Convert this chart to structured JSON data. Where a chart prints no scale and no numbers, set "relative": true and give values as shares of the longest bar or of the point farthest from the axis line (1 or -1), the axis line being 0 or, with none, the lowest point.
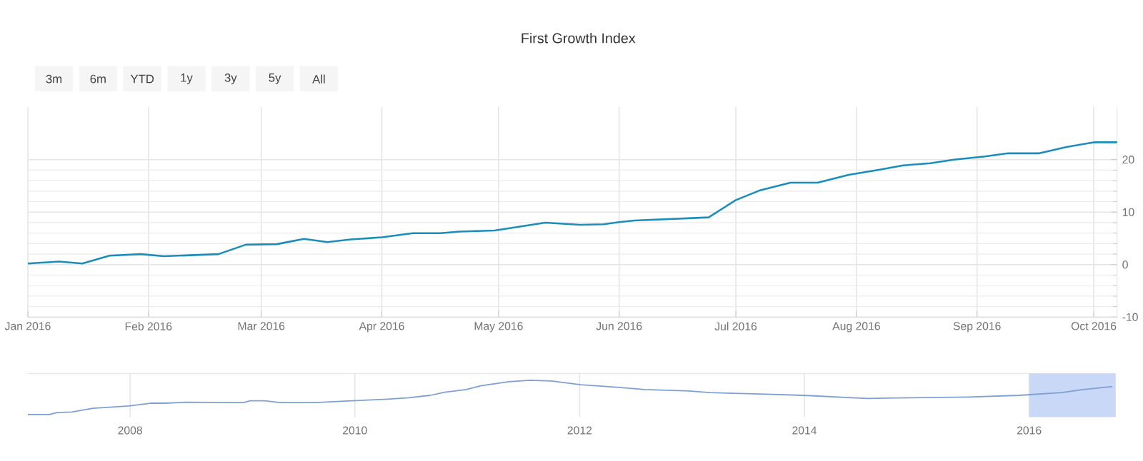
{
  "chart_data": [
    {
      "type": "line",
      "title": "First Growth Index",
      "annotations": [
        "3m",
        "6m",
        "YTD",
        "1y",
        "3y",
        "5y",
        "All"
      ],
      "x": [
        "2016-01-01",
        "2016-01-09",
        "2016-01-15",
        "2016-01-22",
        "2016-01-30",
        "2016-02-05",
        "2016-02-19",
        "2016-02-26",
        "2016-03-05",
        "2016-03-12",
        "2016-03-18",
        "2016-03-24",
        "2016-04-01",
        "2016-04-09",
        "2016-04-16",
        "2016-04-21",
        "2016-04-30",
        "2016-05-13",
        "2016-05-22",
        "2016-05-28",
        "2016-06-01",
        "2016-06-05",
        "2016-06-24",
        "2016-07-01",
        "2016-07-07",
        "2016-07-15",
        "2016-07-22",
        "2016-07-30",
        "2016-08-07",
        "2016-08-13",
        "2016-08-20",
        "2016-08-26",
        "2016-09-03",
        "2016-09-09",
        "2016-09-17",
        "2016-09-24",
        "2016-10-01",
        "2016-10-07"
      ],
      "series": [
        {
          "color": "#1a8dbb",
          "values": [
            0.2,
            0.6,
            0.2,
            1.7,
            2.0,
            1.6,
            2.0,
            3.8,
            3.9,
            4.9,
            4.3,
            4.8,
            5.2,
            6.0,
            6.0,
            6.3,
            6.5,
            8.0,
            7.6,
            7.7,
            8.1,
            8.4,
            9.0,
            12.3,
            14.1,
            15.6,
            15.6,
            17.1,
            18.1,
            18.9,
            19.3,
            20.0,
            20.6,
            21.2,
            21.2,
            22.4,
            23.3,
            23.3
          ]
        }
      ],
      "xlim": [
        "2016-01-01",
        "2016-10-07"
      ],
      "xticks": [
        {
          "value": "2016-01-01",
          "label": "Jan 2016"
        },
        {
          "value": "2016-02-01",
          "label": "Feb 2016"
        },
        {
          "value": "2016-03-01",
          "label": "Mar 2016"
        },
        {
          "value": "2016-04-01",
          "label": "Apr 2016"
        },
        {
          "value": "2016-05-01",
          "label": "May 2016"
        },
        {
          "value": "2016-06-01",
          "label": "Jun 2016"
        },
        {
          "value": "2016-07-01",
          "label": "Jul 2016"
        },
        {
          "value": "2016-08-01",
          "label": "Aug 2016"
        },
        {
          "value": "2016-09-01",
          "label": "Sep 2016"
        },
        {
          "value": "2016-10-01",
          "label": "Oct 2016"
        }
      ],
      "ylim": [
        -10,
        30
      ],
      "yticks": [
        -10,
        0,
        10,
        20
      ],
      "grid": true
    },
    {
      "type": "line",
      "relative": true,
      "x": [
        2007.09,
        2007.28,
        2007.35,
        2007.48,
        2007.67,
        2007.99,
        2008.18,
        2008.31,
        2008.5,
        2008.88,
        2009.01,
        2009.07,
        2009.2,
        2009.33,
        2009.65,
        2009.97,
        2010.29,
        2010.48,
        2010.67,
        2010.8,
        2010.99,
        2011.12,
        2011.37,
        2011.56,
        2011.75,
        2012.01,
        2012.33,
        2012.58,
        2012.97,
        2013.16,
        2013.61,
        2013.99,
        2014.56,
        2014.95,
        2015.46,
        2015.91,
        2016.29,
        2016.48,
        2016.74
      ],
      "series": [
        {
          "color": "#7f9fd4",
          "values": [
            0,
            0,
            0.055,
            0.073,
            0.18,
            0.25,
            0.33,
            0.33,
            0.36,
            0.35,
            0.35,
            0.4,
            0.4,
            0.35,
            0.35,
            0.4,
            0.45,
            0.49,
            0.56,
            0.65,
            0.73,
            0.84,
            0.96,
            1,
            0.98,
            0.87,
            0.8,
            0.73,
            0.69,
            0.64,
            0.6,
            0.56,
            0.47,
            0.49,
            0.51,
            0.56,
            0.64,
            0.73,
            0.82
          ]
        }
      ],
      "xlim": [
        2007.09,
        2016.77
      ],
      "xticks": [
        2008,
        2010,
        2012,
        2014,
        2016
      ],
      "bands": [
        {
          "axis": "x",
          "from": 2016.0,
          "to": 2016.77,
          "color": "#c8d8f6"
        }
      ],
      "grid": "x"
    }
  ]
}
